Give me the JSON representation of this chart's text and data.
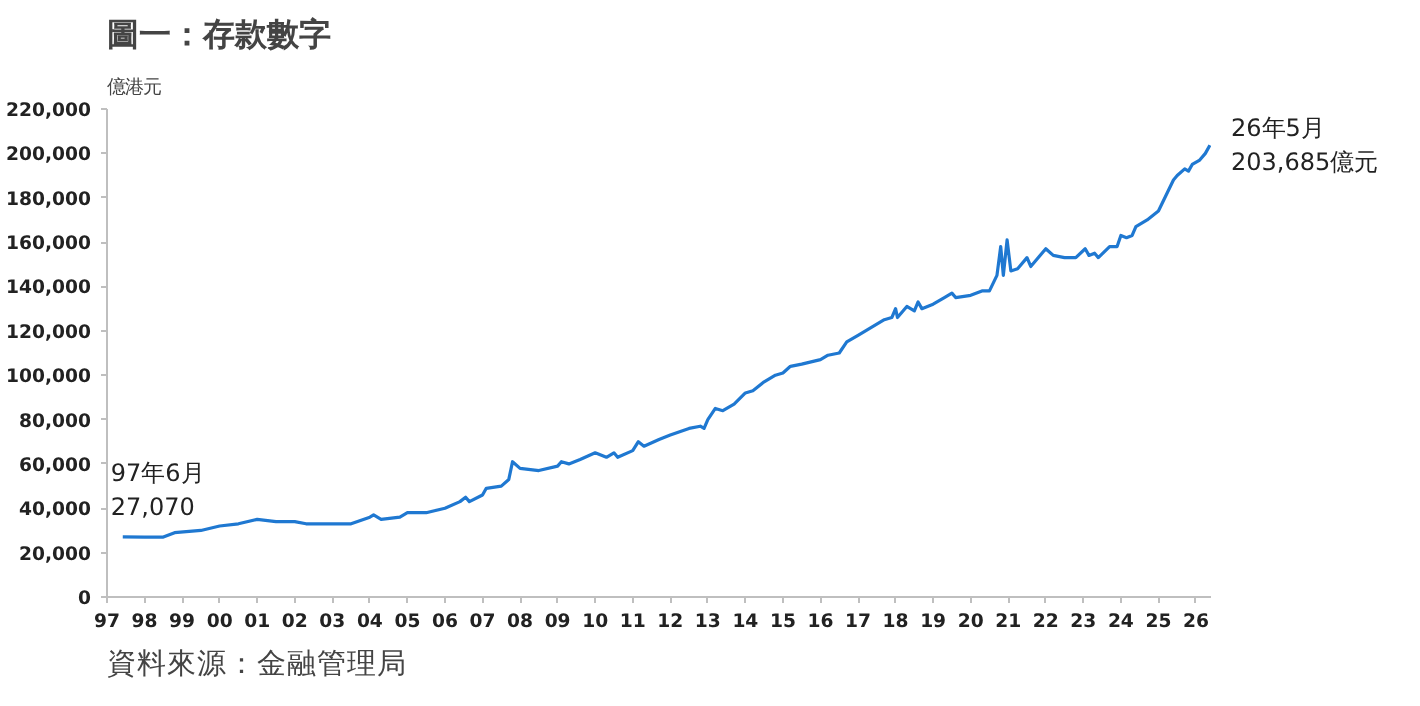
{
  "chart_data": {
    "type": "line",
    "title": "圖一：存款數字",
    "ylabel": "億港元",
    "x": [
      1997.42,
      1998.0,
      1998.5,
      1998.8,
      1999.5,
      2000.0,
      2000.5,
      2001.0,
      2001.5,
      2002.0,
      2002.3,
      2003.0,
      2003.5,
      2004.0,
      2004.1,
      2004.3,
      2004.8,
      2005.0,
      2005.5,
      2006.0,
      2006.4,
      2006.55,
      2006.65,
      2007.0,
      2007.1,
      2007.5,
      2007.7,
      2007.8,
      2008.0,
      2008.5,
      2009.0,
      2009.1,
      2009.3,
      2009.6,
      2010.0,
      2010.3,
      2010.5,
      2010.6,
      2011.0,
      2011.15,
      2011.3,
      2011.7,
      2012.0,
      2012.5,
      2012.8,
      2012.9,
      2013.0,
      2013.2,
      2013.4,
      2013.7,
      2014.0,
      2014.2,
      2014.5,
      2014.8,
      2015.0,
      2015.2,
      2015.5,
      2016.0,
      2016.2,
      2016.5,
      2016.7,
      2017.0,
      2017.3,
      2017.7,
      2017.9,
      2018.0,
      2018.05,
      2018.3,
      2018.5,
      2018.6,
      2018.7,
      2019.0,
      2019.3,
      2019.5,
      2019.6,
      2020.0,
      2020.3,
      2020.5,
      2020.7,
      2020.8,
      2020.87,
      2020.97,
      2021.07,
      2021.25,
      2021.5,
      2021.6,
      2022.0,
      2022.2,
      2022.5,
      2022.8,
      2023.05,
      2023.15,
      2023.3,
      2023.4,
      2023.7,
      2023.9,
      2024.0,
      2024.15,
      2024.3,
      2024.4,
      2024.7,
      2025.0,
      2025.2,
      2025.4,
      2025.5,
      2025.7,
      2025.8,
      2025.9,
      2026.1,
      2026.25,
      2026.37
    ],
    "series": [
      {
        "color": "#1f78d1",
        "values": [
          27070,
          27000,
          27000,
          29000,
          30000,
          32000,
          33000,
          35000,
          34000,
          34000,
          33000,
          33000,
          33000,
          36000,
          37000,
          35000,
          36000,
          38000,
          38000,
          40000,
          43000,
          45000,
          43000,
          46000,
          49000,
          50000,
          53000,
          61000,
          58000,
          57000,
          59000,
          61000,
          60000,
          62000,
          65000,
          63000,
          65000,
          63000,
          66000,
          70000,
          68000,
          71000,
          73000,
          76000,
          77000,
          76000,
          80000,
          85000,
          84000,
          87000,
          92000,
          93000,
          97000,
          100000,
          101000,
          104000,
          105000,
          107000,
          109000,
          110000,
          115000,
          118000,
          121000,
          125000,
          126000,
          130000,
          126000,
          131000,
          129000,
          133000,
          130000,
          132000,
          135000,
          137000,
          135000,
          136000,
          138000,
          138000,
          145000,
          158000,
          145000,
          161000,
          147000,
          148000,
          153000,
          149000,
          157000,
          154000,
          153000,
          153000,
          157000,
          154000,
          155000,
          153000,
          158000,
          158000,
          163000,
          162000,
          163000,
          167000,
          170000,
          174000,
          181000,
          188000,
          190000,
          193000,
          192000,
          195000,
          197000,
          200000,
          203685
        ]
      }
    ],
    "xlim": [
      1997,
      2026.4
    ],
    "xticks": [
      {
        "value": 1997,
        "label": "97"
      },
      {
        "value": 1998,
        "label": "98"
      },
      {
        "value": 1999,
        "label": "99"
      },
      {
        "value": 2000,
        "label": "00"
      },
      {
        "value": 2001,
        "label": "01"
      },
      {
        "value": 2002,
        "label": "02"
      },
      {
        "value": 2003,
        "label": "03"
      },
      {
        "value": 2004,
        "label": "04"
      },
      {
        "value": 2005,
        "label": "05"
      },
      {
        "value": 2006,
        "label": "06"
      },
      {
        "value": 2007,
        "label": "07"
      },
      {
        "value": 2008,
        "label": "08"
      },
      {
        "value": 2009,
        "label": "09"
      },
      {
        "value": 2010,
        "label": "10"
      },
      {
        "value": 2011,
        "label": "11"
      },
      {
        "value": 2012,
        "label": "12"
      },
      {
        "value": 2013,
        "label": "13"
      },
      {
        "value": 2014,
        "label": "14"
      },
      {
        "value": 2015,
        "label": "15"
      },
      {
        "value": 2016,
        "label": "16"
      },
      {
        "value": 2017,
        "label": "17"
      },
      {
        "value": 2018,
        "label": "18"
      },
      {
        "value": 2019,
        "label": "19"
      },
      {
        "value": 2020,
        "label": "20"
      },
      {
        "value": 2021,
        "label": "21"
      },
      {
        "value": 2022,
        "label": "22"
      },
      {
        "value": 2023,
        "label": "23"
      },
      {
        "value": 2024,
        "label": "24"
      },
      {
        "value": 2025,
        "label": "25"
      },
      {
        "value": 2026,
        "label": "26"
      }
    ],
    "ylim": [
      0,
      220000
    ],
    "yticks": [
      {
        "value": 0,
        "label": "0"
      },
      {
        "value": 20000,
        "label": "20,000"
      },
      {
        "value": 40000,
        "label": "40,000"
      },
      {
        "value": 60000,
        "label": "60,000"
      },
      {
        "value": 80000,
        "label": "80,000"
      },
      {
        "value": 100000,
        "label": "100,000"
      },
      {
        "value": 120000,
        "label": "120,000"
      },
      {
        "value": 140000,
        "label": "140,000"
      },
      {
        "value": 160000,
        "label": "160,000"
      },
      {
        "value": 180000,
        "label": "180,000"
      },
      {
        "value": 200000,
        "label": "200,000"
      },
      {
        "value": 220000,
        "label": "220,000"
      }
    ],
    "grid": false,
    "annotations": [
      {
        "text": "97年6月\n27,070",
        "x": 1997.42,
        "y": 27070
      },
      {
        "text": "26年5月\n203,685億元",
        "x": 2026.37,
        "y": 203685
      },
      "資料來源：金融管理局"
    ]
  }
}
